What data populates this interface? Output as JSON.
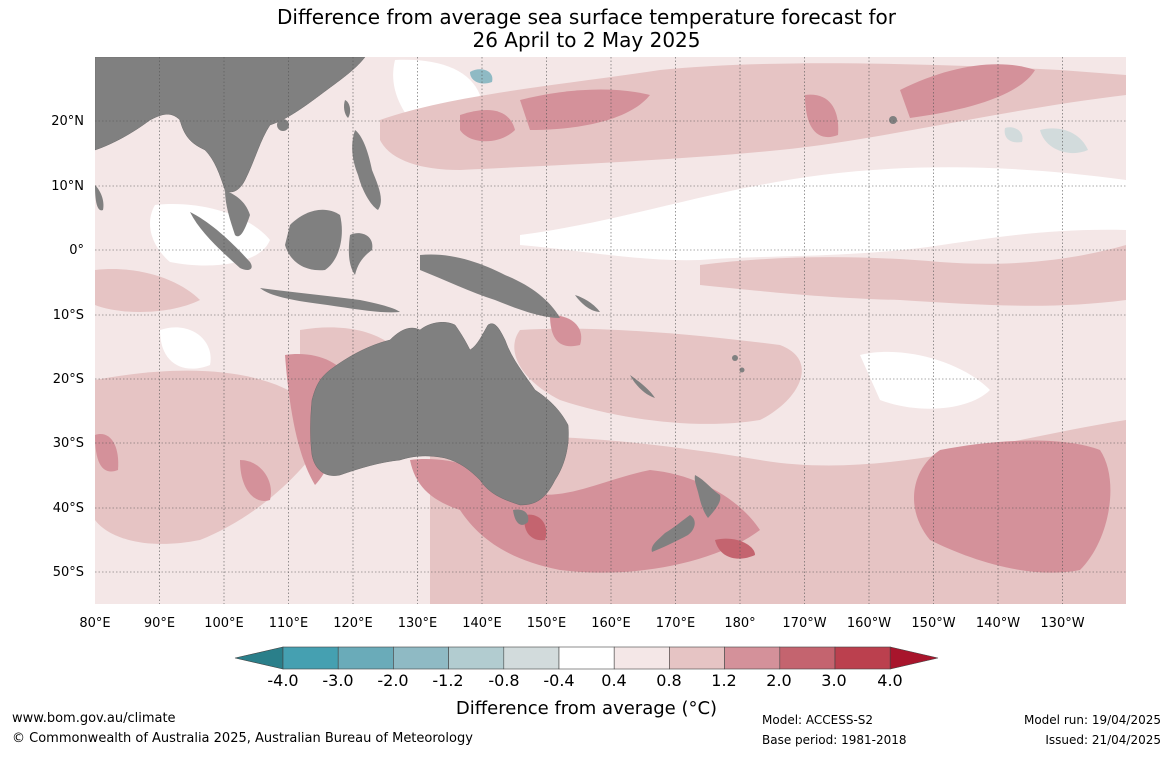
{
  "title": {
    "line1": "Difference from average sea surface temperature forecast for",
    "line2": "26 April to 2 May 2025"
  },
  "map": {
    "lat_labels": [
      "20°N",
      "10°N",
      "0°",
      "10°S",
      "20°S",
      "30°S",
      "40°S",
      "50°S"
    ],
    "lon_labels": [
      "80°E",
      "90°E",
      "100°E",
      "110°E",
      "120°E",
      "130°E",
      "140°E",
      "150°E",
      "160°E",
      "170°E",
      "180°",
      "170°W",
      "160°W",
      "150°W",
      "140°W",
      "130°W"
    ],
    "land_color": "#808080",
    "ocean_color": "#ffffff"
  },
  "colorbar": {
    "title": "Difference from average (°C)",
    "labels": [
      "-4.0",
      "-3.0",
      "-2.0",
      "-1.2",
      "-0.8",
      "-0.4",
      "0.4",
      "0.8",
      "1.2",
      "2.0",
      "3.0",
      "4.0"
    ],
    "colors": [
      "#2a7f8a",
      "#45a0b1",
      "#6aabb9",
      "#8fbac4",
      "#b2ccd0",
      "#d2dbdc",
      "#ffffff",
      "#f4e7e7",
      "#e6c4c4",
      "#d4919a",
      "#c4646f",
      "#bb404e",
      "#a8152c"
    ]
  },
  "footer": {
    "url": "www.bom.gov.au/climate",
    "copyright": "© Commonwealth of Australia 2025, Australian Bureau of Meteorology",
    "model": "Model: ACCESS-S2",
    "base_period": "Base period: 1981-2018",
    "model_run": "Model run: 19/04/2025",
    "issued": "Issued: 21/04/2025"
  }
}
